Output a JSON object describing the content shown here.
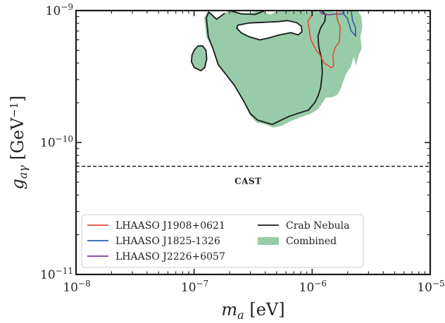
{
  "chart_data": {
    "type": "area",
    "x_scale": "log",
    "y_scale": "log",
    "xlim": [
      1e-08,
      1e-05
    ],
    "ylim": [
      1e-11,
      1e-09
    ],
    "xlabel": {
      "base": "m",
      "sub": "a",
      "unit": " [eV]"
    },
    "ylabel": {
      "base": "g",
      "sub": "aγ",
      "unit_open": " [GeV",
      "unit_exp": "−1",
      "unit_close": "]"
    },
    "x_ticks": [
      {
        "value": 1e-08,
        "base": "10",
        "exp": "−8"
      },
      {
        "value": 1e-07,
        "base": "10",
        "exp": "−7"
      },
      {
        "value": 1e-06,
        "base": "10",
        "exp": "−6"
      },
      {
        "value": 1e-05,
        "base": "10",
        "exp": "−5"
      }
    ],
    "y_ticks": [
      {
        "value": 1e-11,
        "base": "10",
        "exp": "−11"
      },
      {
        "value": 1e-10,
        "base": "10",
        "exp": "−10"
      },
      {
        "value": 1e-09,
        "base": "10",
        "exp": "−9"
      }
    ],
    "reference_lines": [
      {
        "label": "CAST",
        "y": 6.6e-11,
        "style": "dashed",
        "color": "#222222",
        "label_x": 2.2e-07,
        "label_y": 5.1e-11
      }
    ],
    "series": [
      {
        "name": "Combined",
        "kind": "filled-region",
        "color": "#98cba8",
        "x": [
          2e-07,
          2.4e-07,
          2.9e-07,
          3.3e-07,
          3.7e-07,
          4e-07,
          4.4e-07,
          5.2e-07,
          6e-07,
          7e-07,
          8e-07,
          9e-07,
          1.02e-06,
          1.12e-06,
          1.2e-06,
          1.3e-06,
          1.42e-06,
          1.58e-06,
          1.75e-06,
          1.95e-06,
          2.2e-06,
          2.42e-06,
          2.6e-06,
          2.65e-06,
          2.55e-06,
          2.62e-06,
          2.45e-06,
          2.35e-06,
          2.25e-06,
          2.1e-06,
          2e-06,
          1.9e-06,
          1.8e-06,
          1.72e-06,
          1.62e-06,
          1.45e-06,
          1.3e-06,
          1.22e-06,
          1.12e-06,
          9.6e-07,
          7.8e-07,
          6.5e-07,
          5.6e-07,
          4.7e-07,
          4e-07,
          3.4e-07,
          3e-07,
          2.6e-07,
          2.2e-07,
          1.85e-07,
          1.6e-07,
          1.45e-07,
          1.28e-07,
          1.22e-07,
          1.3e-07,
          1.55e-07,
          1.82e-07
        ],
        "y": [
          1e-09,
          9.4e-10,
          9.3e-10,
          9.8e-10,
          1e-09,
          9.6e-10,
          9.3e-10,
          1e-09,
          1e-09,
          9.7e-10,
          1e-09,
          9.6e-10,
          1e-09,
          9.7e-10,
          1e-09,
          9.9e-10,
          1e-09,
          9.7e-10,
          1e-09,
          9.7e-10,
          1e-09,
          1e-09,
          9e-10,
          7.5e-10,
          6.3e-10,
          5.2e-10,
          4.5e-10,
          3.9e-10,
          4.5e-10,
          3.7e-10,
          3.5e-10,
          3.2e-10,
          2.8e-10,
          2.5e-10,
          2.3e-10,
          2.2e-10,
          2.2e-10,
          2e-10,
          1.8e-10,
          1.65e-10,
          1.55e-10,
          1.45e-10,
          1.35e-10,
          1.3e-10,
          1.38e-10,
          1.42e-10,
          1.6e-10,
          2.1e-10,
          2.7e-10,
          3.3e-10,
          3.9e-10,
          5.1e-10,
          6.3e-10,
          8.8e-10,
          9.7e-10,
          8.6e-10,
          9.5e-10
        ]
      },
      {
        "name": "Combined",
        "kind": "filled-region",
        "color": "#98cba8",
        "x": [
          1e-07,
          1.07e-07,
          1.14e-07,
          1.23e-07,
          1.28e-07,
          1.26e-07,
          1.18e-07,
          1.08e-07,
          1e-07,
          9.6e-08,
          9.5e-08
        ],
        "y": [
          3.7e-10,
          3.6e-10,
          3.5e-10,
          3.7e-10,
          4.3e-10,
          5e-10,
          5.4e-10,
          5.4e-10,
          5e-10,
          4.6e-10,
          4.1e-10
        ]
      },
      {
        "name": "Crab Nebula",
        "kind": "contour",
        "color": "#1a1a1a",
        "x": [
          2e-07,
          2.5e-07,
          3.3e-07,
          4e-07,
          1.2e-06,
          1.3e-06,
          1.28e-06,
          1.18e-06,
          1.12e-06,
          1.14e-06,
          1.2e-06,
          1.22e-06,
          1.18e-06,
          1.12e-06,
          1.05e-06,
          9.3e-07,
          7.7e-07,
          6.4e-07,
          5.4e-07,
          4.6e-07,
          4e-07,
          3.45e-07,
          3e-07,
          2.6e-07,
          2.2e-07,
          1.85e-07,
          1.6e-07,
          1.45e-07,
          1.32e-07,
          1.27e-07,
          1.33e-07,
          1.55e-07,
          1.82e-07
        ],
        "y": [
          1e-09,
          9.45e-10,
          9.35e-10,
          1e-09,
          1e-09,
          9.3e-10,
          8.3e-10,
          7.4e-10,
          6.4e-10,
          5.2e-10,
          4.4e-10,
          3.4e-10,
          2.6e-10,
          2.25e-10,
          2e-10,
          1.76e-10,
          1.67e-10,
          1.58e-10,
          1.47e-10,
          1.37e-10,
          1.42e-10,
          1.48e-10,
          1.65e-10,
          2.1e-10,
          2.7e-10,
          3.3e-10,
          3.9e-10,
          5.1e-10,
          6.3e-10,
          8.8e-10,
          9.75e-10,
          8.6e-10,
          9.55e-10
        ]
      },
      {
        "name": "Crab Nebula",
        "kind": "contour",
        "color": "#1a1a1a",
        "x": [
          1e-07,
          1.07e-07,
          1.14e-07,
          1.23e-07,
          1.28e-07,
          1.26e-07,
          1.18e-07,
          1.08e-07,
          1e-07,
          9.6e-08,
          9.5e-08
        ],
        "y": [
          3.7e-10,
          3.6e-10,
          3.5e-10,
          3.7e-10,
          4.3e-10,
          5e-10,
          5.4e-10,
          5.4e-10,
          5e-10,
          4.6e-10,
          4.1e-10
        ]
      },
      {
        "name": "Crab Nebula",
        "kind": "contour-hole",
        "color": "#1a1a1a",
        "x": [
          2.35e-07,
          2.9e-07,
          3.9e-07,
          5.2e-07,
          6.2e-07,
          7.4e-07,
          8.1e-07,
          8.2e-07,
          7.6e-07,
          6.6e-07,
          5.3e-07,
          4.3e-07,
          3.6e-07,
          2.9e-07,
          2.5e-07,
          2.3e-07
        ],
        "y": [
          7.75e-10,
          8.05e-10,
          8.15e-10,
          8.25e-10,
          8.4e-10,
          8.1e-10,
          7.6e-10,
          6.9e-10,
          6.55e-10,
          6.8e-10,
          6.55e-10,
          6.2e-10,
          6e-10,
          6.35e-10,
          6.8e-10,
          7.35e-10
        ]
      },
      {
        "name": "LHAASO J1908+0621",
        "kind": "contour",
        "color": "#e04a35",
        "x": [
          9.9e-07,
          1e-06,
          9.2e-07,
          9.7e-07,
          1.08e-06,
          1.15e-06,
          1.26e-06,
          1.45e-06,
          1.52e-06,
          1.5e-06,
          1.56e-06,
          1.7e-06,
          1.73e-06,
          1.63e-06,
          1.6e-06
        ],
        "y": [
          1e-09,
          9.3e-10,
          8.3e-10,
          6.1e-10,
          5e-10,
          4.7e-10,
          4e-10,
          3.7e-10,
          3.8e-10,
          4.6e-10,
          5.2e-10,
          5.8e-10,
          7.5e-10,
          8.6e-10,
          1e-09
        ]
      },
      {
        "name": "LHAASO J1825-1326",
        "kind": "contour",
        "color": "#2b5fa8",
        "x": [
          1.85e-06,
          1.86e-06,
          1.98e-06,
          2.14e-06,
          2.34e-06,
          2.32e-06,
          2.2e-06,
          2.14e-06
        ],
        "y": [
          1e-09,
          9.3e-10,
          8.8e-10,
          7e-10,
          6.4e-10,
          7.5e-10,
          8.4e-10,
          1e-09
        ]
      },
      {
        "name": "LHAASO J2226+6057",
        "kind": "contour",
        "color": "#7d3a92",
        "x": [
          1.15e-06,
          1.2e-06,
          1.4e-06,
          1.58e-06,
          1.8e-06,
          1.87e-06
        ],
        "y": [
          1e-09,
          9.45e-10,
          9.3e-10,
          9.4e-10,
          9.4e-10,
          1e-09
        ]
      }
    ],
    "legend": {
      "position": "lower-left",
      "columns": 2,
      "entries": [
        {
          "label": "LHAASO J1908+0621",
          "color": "#e04a35",
          "kind": "line"
        },
        {
          "label": "LHAASO J1825-1326",
          "color": "#2b5fa8",
          "kind": "line"
        },
        {
          "label": "LHAASO J2226+6057",
          "color": "#7d3a92",
          "kind": "line"
        },
        {
          "label": "Crab Nebula",
          "color": "#1a1a1a",
          "kind": "line"
        },
        {
          "label": "Combined",
          "color": "#98cba8",
          "kind": "patch"
        }
      ]
    },
    "grid": false
  }
}
